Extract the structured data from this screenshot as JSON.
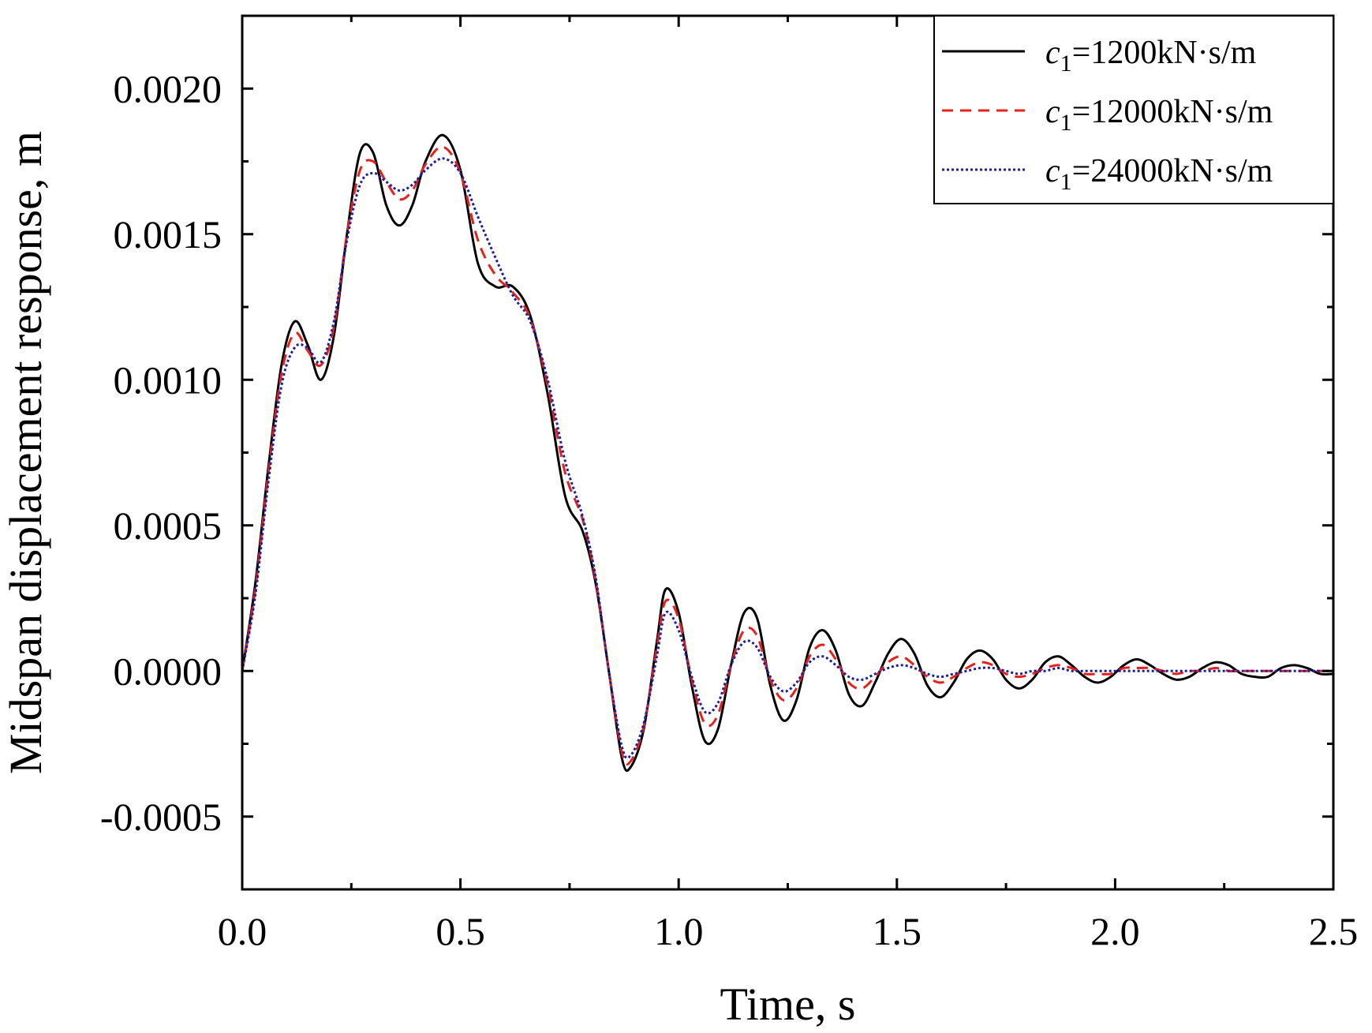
{
  "chart_data": {
    "type": "line",
    "xlabel": "Time, s",
    "ylabel": "Midspan displacement response, m",
    "xlim": [
      0.0,
      2.5
    ],
    "ylim": [
      -0.00075,
      0.00225
    ],
    "xticks": [
      "0.0",
      "0.5",
      "1.0",
      "1.5",
      "2.0",
      "2.5"
    ],
    "yticks": [
      "-0.0005",
      "0.0000",
      "0.0005",
      "0.0010",
      "0.0015",
      "0.0020"
    ],
    "grid": false,
    "legend_position": "top-right",
    "series": [
      {
        "name": "c1=1200kN·s/m",
        "legend": {
          "var": "c",
          "sub": "1",
          "text": "=1200kN·s/m"
        },
        "color": "#000000",
        "dash": "solid",
        "x": [
          0.0,
          0.03,
          0.06,
          0.09,
          0.12,
          0.15,
          0.18,
          0.21,
          0.24,
          0.27,
          0.3,
          0.33,
          0.36,
          0.39,
          0.42,
          0.46,
          0.5,
          0.54,
          0.58,
          0.62,
          0.66,
          0.7,
          0.74,
          0.78,
          0.81,
          0.84,
          0.87,
          0.89,
          0.92,
          0.95,
          0.97,
          1.0,
          1.03,
          1.06,
          1.09,
          1.12,
          1.15,
          1.18,
          1.21,
          1.24,
          1.27,
          1.3,
          1.33,
          1.36,
          1.39,
          1.42,
          1.45,
          1.48,
          1.51,
          1.54,
          1.57,
          1.6,
          1.63,
          1.66,
          1.69,
          1.72,
          1.75,
          1.78,
          1.81,
          1.84,
          1.87,
          1.9,
          1.93,
          1.96,
          1.99,
          2.02,
          2.05,
          2.08,
          2.11,
          2.14,
          2.17,
          2.2,
          2.23,
          2.26,
          2.29,
          2.32,
          2.35,
          2.38,
          2.41,
          2.44,
          2.47,
          2.5
        ],
        "y": [
          0.0,
          0.0003,
          0.0007,
          0.00105,
          0.0012,
          0.00112,
          0.001,
          0.00115,
          0.0015,
          0.00178,
          0.00178,
          0.0016,
          0.00153,
          0.0016,
          0.00175,
          0.00184,
          0.00172,
          0.0014,
          0.00132,
          0.00132,
          0.00122,
          0.00095,
          0.0006,
          0.00048,
          0.0003,
          0.0,
          -0.0003,
          -0.00033,
          -0.0002,
          0.0001,
          0.00028,
          0.0002,
          -5e-05,
          -0.00024,
          -0.0002,
          2e-05,
          0.0002,
          0.00018,
          -5e-05,
          -0.00017,
          -0.0001,
          8e-05,
          0.00014,
          7e-05,
          -8e-05,
          -0.00012,
          -4e-05,
          6e-05,
          0.00011,
          6e-05,
          -5e-05,
          -9e-05,
          -4e-05,
          4e-05,
          7e-05,
          4e-05,
          -3e-05,
          -6e-05,
          -3e-05,
          3e-05,
          5e-05,
          2e-05,
          -2e-05,
          -4e-05,
          -2e-05,
          2e-05,
          4e-05,
          2e-05,
          -1e-05,
          -3e-05,
          -2e-05,
          1e-05,
          3e-05,
          2e-05,
          -1e-05,
          -2e-05,
          -2e-05,
          1e-05,
          2e-05,
          1e-05,
          -1e-05,
          -1e-05
        ]
      },
      {
        "name": "c1=12000kN·s/m",
        "legend": {
          "var": "c",
          "sub": "1",
          "text": "=12000kN·s/m"
        },
        "color": "#e8201a",
        "dash": "dashed",
        "x": [
          0.0,
          0.03,
          0.06,
          0.09,
          0.12,
          0.15,
          0.18,
          0.21,
          0.24,
          0.27,
          0.3,
          0.33,
          0.36,
          0.39,
          0.42,
          0.46,
          0.5,
          0.54,
          0.58,
          0.62,
          0.66,
          0.7,
          0.74,
          0.78,
          0.81,
          0.84,
          0.87,
          0.89,
          0.92,
          0.95,
          0.97,
          1.0,
          1.03,
          1.06,
          1.09,
          1.12,
          1.15,
          1.18,
          1.21,
          1.24,
          1.27,
          1.3,
          1.33,
          1.36,
          1.39,
          1.42,
          1.45,
          1.48,
          1.51,
          1.54,
          1.57,
          1.6,
          1.63,
          1.66,
          1.69,
          1.72,
          1.75,
          1.78,
          1.81,
          1.84,
          1.87,
          1.9,
          1.93,
          1.96,
          1.99,
          2.02,
          2.05,
          2.08,
          2.11,
          2.14,
          2.17,
          2.2,
          2.23,
          2.26,
          2.29,
          2.32,
          2.35,
          2.38,
          2.41,
          2.44,
          2.47,
          2.5
        ],
        "y": [
          0.0,
          0.00028,
          0.00068,
          0.00102,
          0.00116,
          0.0011,
          0.00105,
          0.00118,
          0.0015,
          0.00172,
          0.00175,
          0.00168,
          0.00162,
          0.00165,
          0.00174,
          0.0018,
          0.00171,
          0.00148,
          0.00136,
          0.0013,
          0.00121,
          0.00098,
          0.00068,
          0.00052,
          0.00031,
          0.0,
          -0.00028,
          -0.00031,
          -0.00019,
          8e-05,
          0.00024,
          0.00018,
          -3e-05,
          -0.00018,
          -0.00015,
          2e-05,
          0.00014,
          0.00012,
          -3e-05,
          -0.0001,
          -6e-05,
          5e-05,
          9e-05,
          4e-05,
          -4e-05,
          -6e-05,
          -2e-05,
          3e-05,
          5e-05,
          2e-05,
          -2e-05,
          -4e-05,
          -2e-05,
          1e-05,
          3e-05,
          2e-05,
          -1e-05,
          -2e-05,
          -1e-05,
          1e-05,
          2e-05,
          1e-05,
          -1e-05,
          -1e-05,
          -1e-05,
          1e-05,
          1e-05,
          1e-05,
          0.0,
          -1e-05,
          0.0,
          0.0,
          1e-05,
          0.0,
          0.0,
          0.0,
          0.0,
          0.0,
          0.0,
          0.0,
          0.0,
          0.0
        ]
      },
      {
        "name": "c1=24000kN·s/m",
        "legend": {
          "var": "c",
          "sub": "1",
          "text": "=24000kN·s/m"
        },
        "color": "#1c1f9e",
        "dash": "dotted",
        "x": [
          0.0,
          0.03,
          0.06,
          0.09,
          0.12,
          0.15,
          0.18,
          0.21,
          0.24,
          0.27,
          0.3,
          0.33,
          0.36,
          0.39,
          0.42,
          0.46,
          0.5,
          0.54,
          0.58,
          0.62,
          0.66,
          0.7,
          0.74,
          0.78,
          0.81,
          0.84,
          0.87,
          0.89,
          0.92,
          0.95,
          0.97,
          1.0,
          1.03,
          1.06,
          1.09,
          1.12,
          1.15,
          1.18,
          1.21,
          1.24,
          1.27,
          1.3,
          1.33,
          1.36,
          1.39,
          1.42,
          1.45,
          1.48,
          1.51,
          1.54,
          1.57,
          1.6,
          1.63,
          1.66,
          1.69,
          1.72,
          1.75,
          1.78,
          1.81,
          1.84,
          1.87,
          1.9,
          1.93,
          1.96,
          1.99,
          2.02,
          2.05,
          2.08,
          2.11,
          2.14,
          2.17,
          2.2,
          2.23,
          2.26,
          2.29,
          2.32,
          2.35,
          2.38,
          2.41,
          2.44,
          2.47,
          2.5
        ],
        "y": [
          0.0,
          0.00026,
          0.00065,
          0.00098,
          0.00111,
          0.00111,
          0.00106,
          0.0012,
          0.00148,
          0.00167,
          0.00171,
          0.00168,
          0.00165,
          0.00167,
          0.00172,
          0.00176,
          0.00171,
          0.00156,
          0.00142,
          0.00129,
          0.0012,
          0.001,
          0.00072,
          0.00053,
          0.00032,
          0.0,
          -0.00026,
          -0.00029,
          -0.00018,
          5e-05,
          0.0002,
          0.00014,
          -2e-05,
          -0.00014,
          -0.00011,
          2e-05,
          0.0001,
          8e-05,
          -2e-05,
          -7e-05,
          -4e-05,
          3e-05,
          5e-05,
          2e-05,
          -2e-05,
          -3e-05,
          -1e-05,
          1e-05,
          2e-05,
          1e-05,
          -1e-05,
          -2e-05,
          -1e-05,
          0.0,
          1e-05,
          1e-05,
          0.0,
          -1e-05,
          0.0,
          0.0,
          1e-05,
          0.0,
          0.0,
          0.0,
          0.0,
          0.0,
          0.0,
          0.0,
          0.0,
          0.0,
          0.0,
          0.0,
          0.0,
          0.0,
          0.0,
          0.0,
          0.0,
          0.0,
          0.0,
          0.0,
          0.0,
          0.0
        ]
      }
    ]
  }
}
